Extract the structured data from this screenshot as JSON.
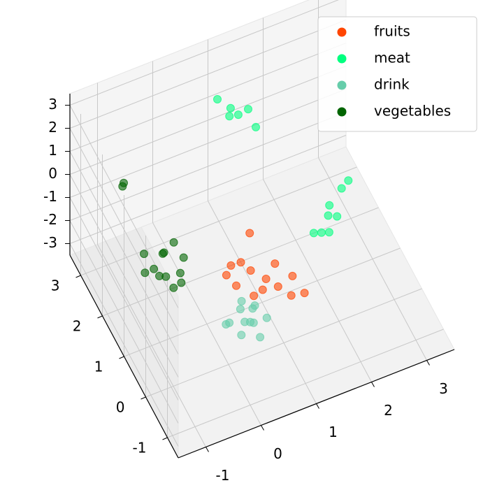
{
  "chart_data": {
    "type": "scatter3d",
    "xlim": [
      -1.5,
      3.5
    ],
    "ylim": [
      -1.5,
      3.5
    ],
    "zlim": [
      -3.5,
      3.5
    ],
    "xticks": [
      -1,
      0,
      1,
      2,
      3
    ],
    "yticks": [
      -1,
      0,
      1,
      2,
      3
    ],
    "zticks": [
      -3,
      -2,
      -1,
      0,
      1,
      2,
      3
    ],
    "grid": true,
    "legend": "upper right",
    "series": [
      {
        "name": "fruits",
        "color": "#ff4500",
        "x": [
          0.1,
          0.3,
          0.5,
          0.7,
          0.2,
          0.4,
          0.6,
          0.9,
          1.0,
          0.0,
          0.3,
          0.8,
          1.1,
          0.5
        ],
        "y": [
          -0.1,
          0.2,
          -0.3,
          -0.5,
          0.4,
          0.0,
          -0.2,
          -0.6,
          -0.4,
          0.1,
          -0.4,
          -0.1,
          -0.7,
          0.3
        ],
        "z": [
          0.0,
          0.3,
          -0.2,
          0.1,
          -0.1,
          0.2,
          0.0,
          -0.3,
          0.1,
          0.2,
          -0.1,
          0.3,
          -0.2,
          1.2
        ]
      },
      {
        "name": "meat",
        "color": "#00ff7f",
        "x": [
          1.8,
          2.0,
          2.2,
          1.9,
          2.4,
          2.6,
          1.7,
          2.1,
          0.8,
          1.0,
          1.1,
          0.9,
          1.2,
          0.7
        ],
        "y": [
          0.3,
          0.5,
          0.6,
          0.2,
          0.9,
          1.1,
          0.4,
          0.7,
          2.0,
          2.1,
          1.9,
          2.2,
          1.8,
          2.3
        ],
        "z": [
          0.0,
          0.2,
          -0.2,
          0.1,
          0.3,
          0.1,
          -0.1,
          0.2,
          3.0,
          2.7,
          3.2,
          2.9,
          2.5,
          3.3
        ]
      },
      {
        "name": "drink",
        "color": "#66cdaa",
        "x": [
          -0.3,
          -0.1,
          0.1,
          0.2,
          -0.2,
          0.0,
          0.3,
          -0.4,
          0.1,
          -0.1,
          0.2,
          0.0
        ],
        "y": [
          -0.8,
          -1.0,
          -0.9,
          -0.7,
          -1.1,
          -0.6,
          -1.0,
          -0.9,
          -1.2,
          -0.8,
          -0.6,
          -1.0
        ],
        "z": [
          0.0,
          0.2,
          -0.2,
          0.1,
          -0.1,
          0.3,
          0.0,
          0.2,
          -0.3,
          0.4,
          -0.2,
          0.1
        ]
      },
      {
        "name": "vegetables",
        "color": "#006400",
        "x": [
          -1.0,
          -0.8,
          -0.6,
          -0.9,
          -0.7,
          -0.5,
          -1.1,
          -0.8,
          -0.6,
          -0.9,
          -0.7,
          -1.2,
          -0.9,
          -0.8
        ],
        "y": [
          0.9,
          1.0,
          0.7,
          0.6,
          1.2,
          0.8,
          1.1,
          0.5,
          1.0,
          0.9,
          0.4,
          0.8,
          2.6,
          2.8
        ],
        "z": [
          0.0,
          0.3,
          -0.2,
          0.1,
          -0.1,
          0.2,
          0.4,
          -0.3,
          0.6,
          -0.4,
          0.0,
          0.2,
          0.5,
          0.2
        ]
      }
    ]
  }
}
